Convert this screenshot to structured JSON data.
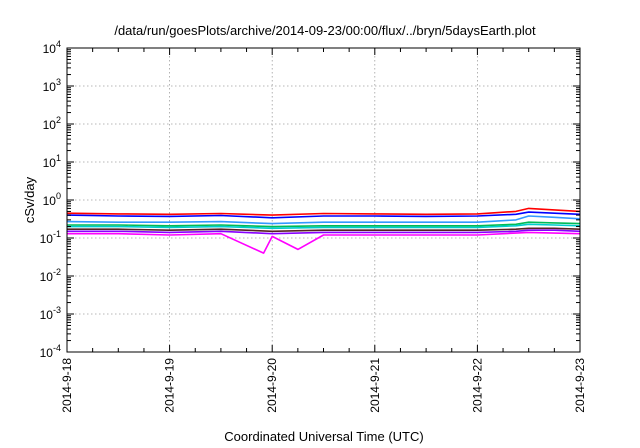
{
  "chart_data": {
    "type": "line",
    "title": "/data/run/goesPlots/archive/2014-09-23/00:00/flux/../bryn/5daysEarth.plot",
    "xlabel": "Coordinated Universal Time (UTC)",
    "ylabel": "cSv/day",
    "yscale": "log",
    "ylim": [
      0.0001,
      10000
    ],
    "xlim": [
      "2014-09-18",
      "2014-09-23"
    ],
    "x_ticks": [
      "2014-9-18",
      "2014-9-19",
      "2014-9-20",
      "2014-9-21",
      "2014-9-22",
      "2014-9-23"
    ],
    "y_ticks": [
      {
        "base": "10",
        "exp": "4"
      },
      {
        "base": "10",
        "exp": "3"
      },
      {
        "base": "10",
        "exp": "2"
      },
      {
        "base": "10",
        "exp": "1"
      },
      {
        "base": "10",
        "exp": "0"
      },
      {
        "base": "10",
        "exp": "-1"
      },
      {
        "base": "10",
        "exp": "-2"
      },
      {
        "base": "10",
        "exp": "-3"
      },
      {
        "base": "10",
        "exp": "-4"
      }
    ],
    "grid": true,
    "series": [
      {
        "color": "#ff0000",
        "x": [
          "2014-09-18",
          "2014-09-18T12:00",
          "2014-09-19",
          "2014-09-19T12:00",
          "2014-09-20",
          "2014-09-20T12:00",
          "2014-09-21",
          "2014-09-21T12:00",
          "2014-09-22",
          "2014-09-22T09:00",
          "2014-09-22T12:00",
          "2014-09-22T18:00",
          "2014-09-23"
        ],
        "y": [
          0.45,
          0.43,
          0.42,
          0.44,
          0.4,
          0.44,
          0.43,
          0.42,
          0.43,
          0.5,
          0.6,
          0.55,
          0.5
        ]
      },
      {
        "color": "#0000ff",
        "x": [
          "2014-09-18",
          "2014-09-18T12:00",
          "2014-09-19",
          "2014-09-19T12:00",
          "2014-09-20",
          "2014-09-20T12:00",
          "2014-09-21",
          "2014-09-21T12:00",
          "2014-09-22",
          "2014-09-22T09:00",
          "2014-09-22T12:00",
          "2014-09-22T18:00",
          "2014-09-23"
        ],
        "y": [
          0.4,
          0.38,
          0.37,
          0.39,
          0.34,
          0.38,
          0.38,
          0.37,
          0.38,
          0.42,
          0.48,
          0.45,
          0.42
        ]
      },
      {
        "color": "#3399ff",
        "x": [
          "2014-09-18",
          "2014-09-18T12:00",
          "2014-09-19",
          "2014-09-19T12:00",
          "2014-09-20",
          "2014-09-20T12:00",
          "2014-09-21",
          "2014-09-21T12:00",
          "2014-09-22",
          "2014-09-22T09:00",
          "2014-09-22T12:00",
          "2014-09-22T18:00",
          "2014-09-23"
        ],
        "y": [
          0.27,
          0.26,
          0.26,
          0.27,
          0.24,
          0.26,
          0.26,
          0.26,
          0.26,
          0.3,
          0.38,
          0.35,
          0.32
        ]
      },
      {
        "color": "#00bb55",
        "x": [
          "2014-09-18",
          "2014-09-18T12:00",
          "2014-09-19",
          "2014-09-19T12:00",
          "2014-09-20",
          "2014-09-20T12:00",
          "2014-09-21",
          "2014-09-21T12:00",
          "2014-09-22",
          "2014-09-22T09:00",
          "2014-09-22T12:00",
          "2014-09-22T18:00",
          "2014-09-23"
        ],
        "y": [
          0.22,
          0.22,
          0.21,
          0.22,
          0.2,
          0.21,
          0.21,
          0.21,
          0.21,
          0.23,
          0.26,
          0.25,
          0.24
        ]
      },
      {
        "color": "#00cccc",
        "x": [
          "2014-09-18",
          "2014-09-18T12:00",
          "2014-09-19",
          "2014-09-19T12:00",
          "2014-09-20",
          "2014-09-20T12:00",
          "2014-09-21",
          "2014-09-21T12:00",
          "2014-09-22",
          "2014-09-22T09:00",
          "2014-09-22T12:00",
          "2014-09-22T18:00",
          "2014-09-23"
        ],
        "y": [
          0.2,
          0.2,
          0.19,
          0.2,
          0.18,
          0.19,
          0.19,
          0.19,
          0.19,
          0.21,
          0.23,
          0.22,
          0.21
        ]
      },
      {
        "color": "#552222",
        "x": [
          "2014-09-18",
          "2014-09-18T12:00",
          "2014-09-19",
          "2014-09-19T12:00",
          "2014-09-20",
          "2014-09-20T12:00",
          "2014-09-21",
          "2014-09-21T12:00",
          "2014-09-22",
          "2014-09-22T09:00",
          "2014-09-22T12:00",
          "2014-09-22T18:00",
          "2014-09-23"
        ],
        "y": [
          0.17,
          0.17,
          0.16,
          0.17,
          0.15,
          0.16,
          0.16,
          0.16,
          0.16,
          0.17,
          0.18,
          0.18,
          0.17
        ]
      },
      {
        "color": "#8800ff",
        "x": [
          "2014-09-18",
          "2014-09-18T12:00",
          "2014-09-19",
          "2014-09-19T12:00",
          "2014-09-20",
          "2014-09-20T12:00",
          "2014-09-21",
          "2014-09-21T12:00",
          "2014-09-22",
          "2014-09-22T09:00",
          "2014-09-22T12:00",
          "2014-09-22T18:00",
          "2014-09-23"
        ],
        "y": [
          0.15,
          0.15,
          0.14,
          0.15,
          0.13,
          0.14,
          0.14,
          0.14,
          0.14,
          0.15,
          0.16,
          0.16,
          0.15
        ]
      },
      {
        "color": "#ff00ff",
        "x": [
          "2014-09-18",
          "2014-09-18T12:00",
          "2014-09-19",
          "2014-09-19T12:00",
          "2014-09-19T22:00",
          "2014-09-20",
          "2014-09-20T06:00",
          "2014-09-20T12:00",
          "2014-09-21",
          "2014-09-21T12:00",
          "2014-09-22",
          "2014-09-22T12:00",
          "2014-09-23"
        ],
        "y": [
          0.13,
          0.13,
          0.12,
          0.13,
          0.04,
          0.11,
          0.05,
          0.12,
          0.12,
          0.12,
          0.12,
          0.14,
          0.13
        ]
      }
    ]
  }
}
